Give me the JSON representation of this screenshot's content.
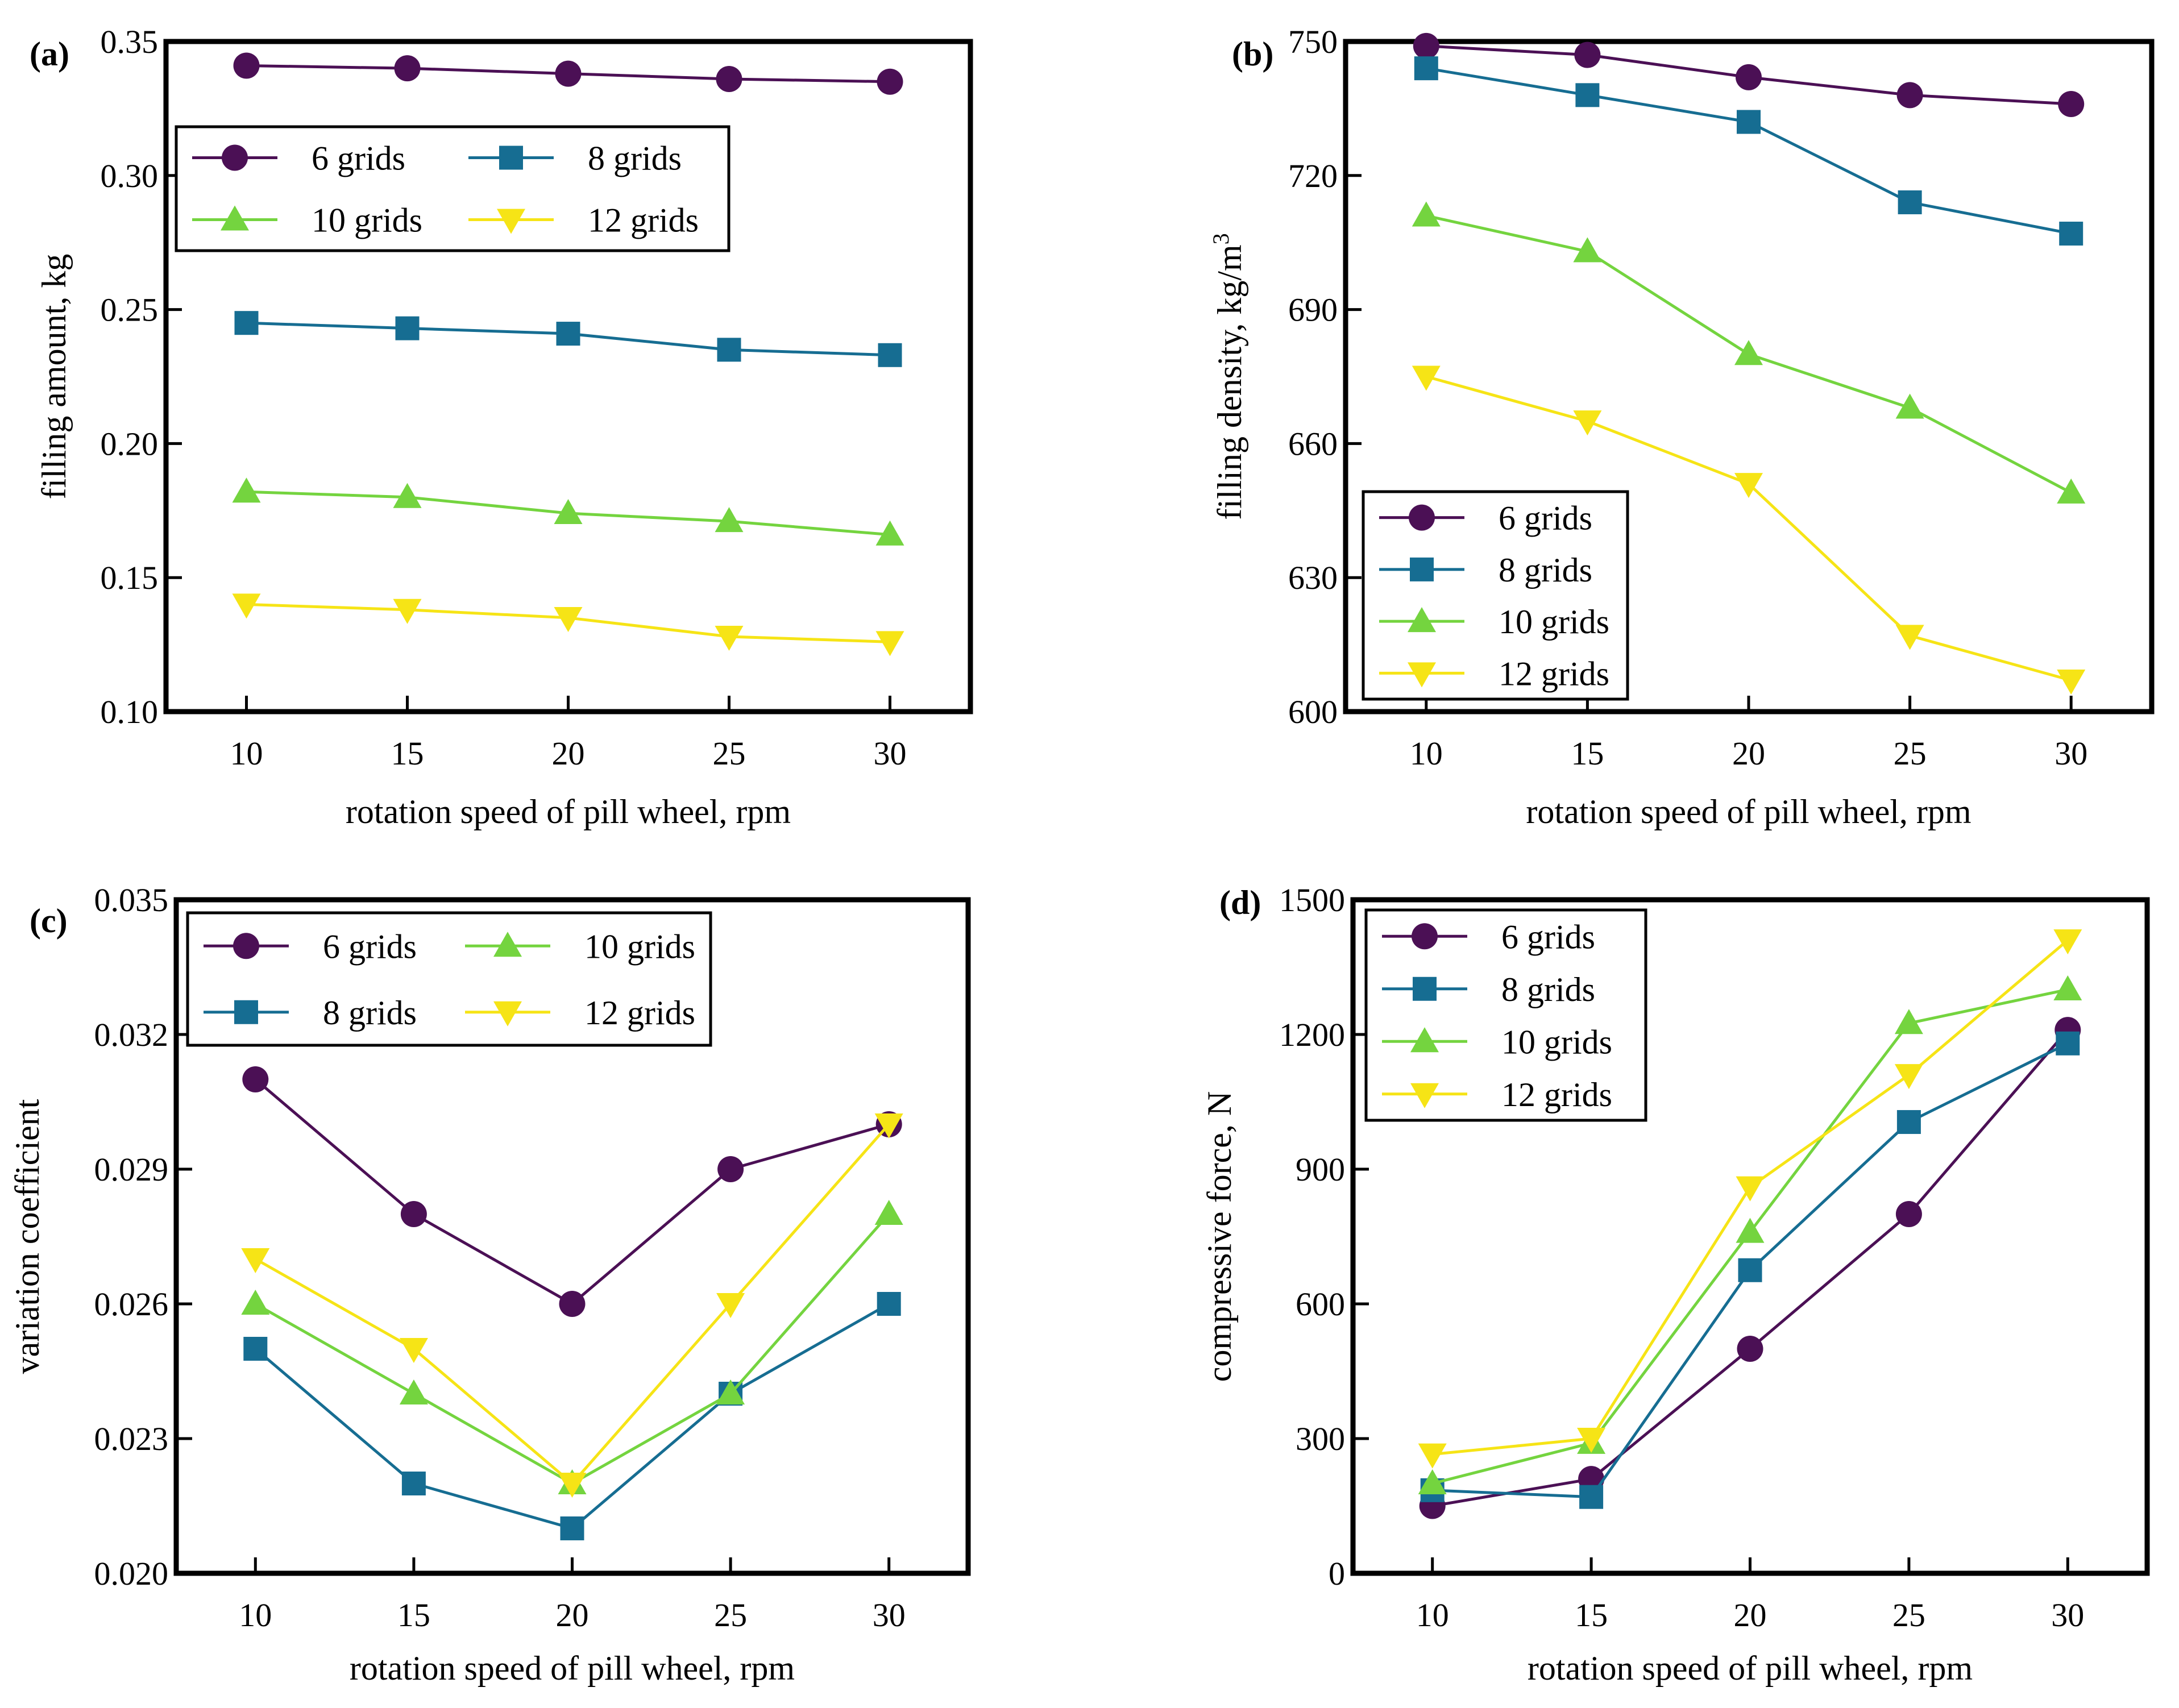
{
  "series_styles": [
    {
      "name": "6 grids",
      "color": "#4b1055",
      "marker": "circle"
    },
    {
      "name": "8 grids",
      "color": "#166d92",
      "marker": "square"
    },
    {
      "name": "10 grids",
      "color": "#74d43f",
      "marker": "triangle-up"
    },
    {
      "name": "12 grids",
      "color": "#f6e416",
      "marker": "triangle-down"
    }
  ],
  "chart_data": [
    {
      "type": "line",
      "panel_label": "(a)",
      "xlabel": "rotation speed of pill wheel, rpm",
      "ylabel": "filling amount, kg",
      "ylabel_super": "",
      "x": [
        10,
        15,
        20,
        25,
        30
      ],
      "x_ticks": [
        "10",
        "15",
        "20",
        "25",
        "30"
      ],
      "xlim": [
        7.5,
        32.5
      ],
      "ylim": [
        0.1,
        0.35
      ],
      "y_ticks": [
        "0.10",
        "0.15",
        "0.20",
        "0.25",
        "0.30",
        "0.35"
      ],
      "y_tick_values": [
        0.1,
        0.15,
        0.2,
        0.25,
        0.3,
        0.35
      ],
      "legend": {
        "placement": "upper-left",
        "columns": 2,
        "order": [
          "6 grids",
          "8 grids",
          "10 grids",
          "12 grids"
        ]
      },
      "series": [
        {
          "name": "6 grids",
          "values": [
            0.341,
            0.34,
            0.338,
            0.336,
            0.335
          ]
        },
        {
          "name": "8 grids",
          "values": [
            0.245,
            0.243,
            0.241,
            0.235,
            0.233
          ]
        },
        {
          "name": "10 grids",
          "values": [
            0.182,
            0.18,
            0.174,
            0.171,
            0.166
          ]
        },
        {
          "name": "12 grids",
          "values": [
            0.14,
            0.138,
            0.135,
            0.128,
            0.126
          ]
        }
      ]
    },
    {
      "type": "line",
      "panel_label": "(b)",
      "xlabel": "rotation speed of pill wheel, rpm",
      "ylabel": "filling density, kg/m",
      "ylabel_super": "3",
      "x": [
        10,
        15,
        20,
        25,
        30
      ],
      "x_ticks": [
        "10",
        "15",
        "20",
        "25",
        "30"
      ],
      "xlim": [
        7.5,
        32.5
      ],
      "ylim": [
        600,
        750
      ],
      "y_ticks": [
        "600",
        "630",
        "660",
        "690",
        "720",
        "750"
      ],
      "y_tick_values": [
        600,
        630,
        660,
        690,
        720,
        750
      ],
      "legend": {
        "placement": "lower-left",
        "columns": 1,
        "order": [
          "6 grids",
          "8 grids",
          "10 grids",
          "12 grids"
        ]
      },
      "series": [
        {
          "name": "6 grids",
          "values": [
            749,
            747,
            742,
            738,
            736
          ]
        },
        {
          "name": "8 grids",
          "values": [
            744,
            738,
            732,
            714,
            707
          ]
        },
        {
          "name": "10 grids",
          "values": [
            711,
            703,
            680,
            668,
            649
          ]
        },
        {
          "name": "12 grids",
          "values": [
            675,
            665,
            651,
            617,
            607
          ]
        }
      ]
    },
    {
      "type": "line",
      "panel_label": "(c)",
      "xlabel": "rotation speed of pill wheel, rpm",
      "ylabel": "variation coefficient",
      "ylabel_super": "",
      "x": [
        10,
        15,
        20,
        25,
        30
      ],
      "x_ticks": [
        "10",
        "15",
        "20",
        "25",
        "30"
      ],
      "xlim": [
        7.5,
        32.5
      ],
      "ylim": [
        0.02,
        0.035
      ],
      "y_ticks": [
        "0.020",
        "0.023",
        "0.026",
        "0.029",
        "0.032",
        "0.035"
      ],
      "y_tick_values": [
        0.02,
        0.023,
        0.026,
        0.029,
        0.032,
        0.035
      ],
      "legend": {
        "placement": "top",
        "columns": 2,
        "order": [
          "6 grids",
          "10 grids",
          "8 grids",
          "12 grids"
        ]
      },
      "series": [
        {
          "name": "6 grids",
          "values": [
            0.031,
            0.028,
            0.026,
            0.029,
            0.03
          ]
        },
        {
          "name": "8 grids",
          "values": [
            0.025,
            0.022,
            0.021,
            0.024,
            0.026
          ]
        },
        {
          "name": "10 grids",
          "values": [
            0.026,
            0.024,
            0.022,
            0.024,
            0.028
          ]
        },
        {
          "name": "12 grids",
          "values": [
            0.027,
            0.025,
            0.022,
            0.026,
            0.03
          ]
        }
      ]
    },
    {
      "type": "line",
      "panel_label": "(d)",
      "xlabel": "rotation speed of pill wheel, rpm",
      "ylabel": "compressive force, N",
      "ylabel_super": "",
      "x": [
        10,
        15,
        20,
        25,
        30
      ],
      "x_ticks": [
        "10",
        "15",
        "20",
        "25",
        "30"
      ],
      "xlim": [
        7.5,
        32.5
      ],
      "ylim": [
        0,
        1500
      ],
      "y_ticks": [
        "0",
        "300",
        "600",
        "900",
        "1200",
        "1500"
      ],
      "y_tick_values": [
        0,
        300,
        600,
        900,
        1200,
        1500
      ],
      "legend": {
        "placement": "upper-left",
        "columns": 1,
        "order": [
          "6 grids",
          "8 grids",
          "10 grids",
          "12 grids"
        ]
      },
      "series": [
        {
          "name": "6 grids",
          "values": [
            150,
            210,
            500,
            800,
            1210
          ]
        },
        {
          "name": "8 grids",
          "values": [
            185,
            170,
            675,
            1005,
            1180
          ]
        },
        {
          "name": "10 grids",
          "values": [
            200,
            290,
            760,
            1225,
            1300
          ]
        },
        {
          "name": "12 grids",
          "values": [
            265,
            300,
            860,
            1110,
            1410
          ]
        }
      ]
    }
  ]
}
